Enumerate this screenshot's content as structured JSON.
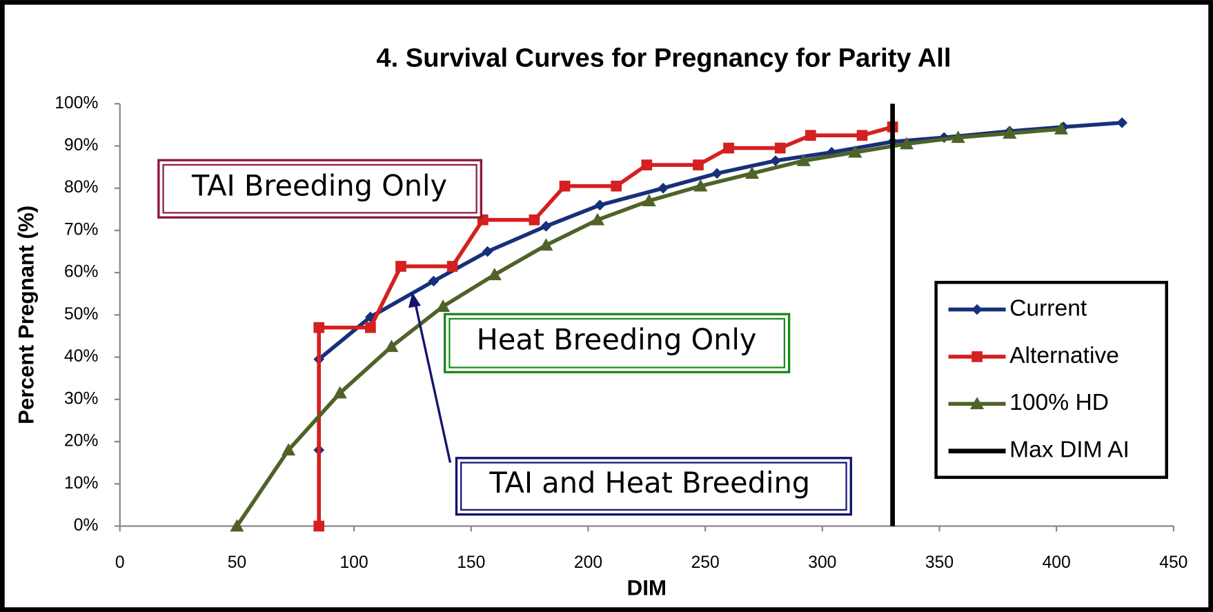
{
  "chart_data": {
    "type": "line",
    "title": "4. Survival Curves for Pregnancy for Parity All",
    "x_label": "DIM",
    "y_label": "Percent Pregnant (%)",
    "xlim": [
      0,
      450
    ],
    "xticks": [
      0,
      50,
      100,
      150,
      200,
      250,
      300,
      350,
      400,
      450
    ],
    "ylim": [
      0,
      100
    ],
    "yticks": [
      {
        "value": 0,
        "label": "0%"
      },
      {
        "value": 10,
        "label": "10%"
      },
      {
        "value": 20,
        "label": "20%"
      },
      {
        "value": 30,
        "label": "30%"
      },
      {
        "value": 40,
        "label": "40%"
      },
      {
        "value": 50,
        "label": "50%"
      },
      {
        "value": 60,
        "label": "60%"
      },
      {
        "value": 70,
        "label": "70%"
      },
      {
        "value": 80,
        "label": "80%"
      },
      {
        "value": 90,
        "label": "90%"
      },
      {
        "value": 100,
        "label": "100%"
      }
    ],
    "legend": "right",
    "series": [
      {
        "name": "Current",
        "color": "#17307a",
        "marker": "diamond",
        "x": [
          85,
          85,
          107,
          134,
          157,
          182,
          205,
          232,
          255,
          280,
          304,
          330,
          352,
          380,
          403,
          428
        ],
        "values": [
          18,
          39.5,
          49.5,
          58,
          65,
          71,
          76,
          80,
          83.5,
          86.5,
          88.5,
          91,
          92,
          93.5,
          94.5,
          95.5
        ]
      },
      {
        "name": "Alternative",
        "color": "#d42020",
        "marker": "square",
        "x": [
          85,
          85,
          107,
          120,
          142,
          155,
          177,
          190,
          212,
          225,
          247,
          260,
          282,
          295,
          317,
          330
        ],
        "values": [
          0,
          47,
          47,
          61.5,
          61.5,
          72.5,
          72.5,
          80.5,
          80.5,
          85.5,
          85.5,
          89.5,
          89.5,
          92.5,
          92.5,
          94.5
        ]
      },
      {
        "name": "100% HD",
        "color": "#4f6228",
        "marker": "triangle",
        "x": [
          50,
          72,
          94,
          116,
          138,
          160,
          182,
          204,
          226,
          248,
          270,
          292,
          314,
          336,
          358,
          380,
          402
        ],
        "values": [
          0,
          18,
          31.5,
          42.5,
          52,
          59.5,
          66.5,
          72.5,
          77,
          80.5,
          83.5,
          86.5,
          88.5,
          90.5,
          92,
          93,
          94
        ]
      },
      {
        "name": "Max DIM AI",
        "color": "#000000",
        "marker": "none",
        "x": [
          330,
          330
        ],
        "values": [
          0,
          100
        ]
      }
    ],
    "annotations": [
      "TAI Breeding Only",
      "Heat Breeding Only",
      "TAI and Heat Breeding"
    ]
  }
}
